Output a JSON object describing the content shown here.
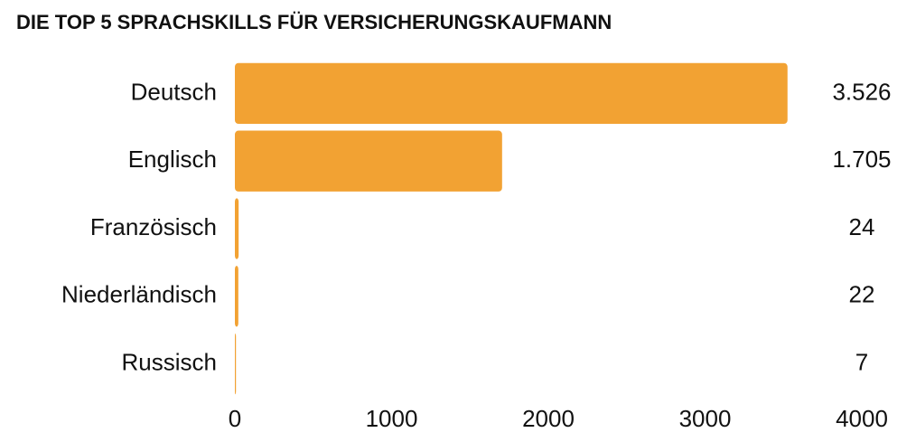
{
  "chart_data": {
    "type": "bar",
    "orientation": "horizontal",
    "title": "DIE TOP 5 SPRACHSKILLS FÜR VERSICHERUNGSKAUFMANN",
    "categories": [
      "Deutsch",
      "Englisch",
      "Französisch",
      "Niederländisch",
      "Russisch"
    ],
    "values": [
      3526,
      1705,
      24,
      22,
      7
    ],
    "value_labels": [
      "3.526",
      "1.705",
      "24",
      "22",
      "7"
    ],
    "color": "#f2a233",
    "xlim": [
      0,
      4000
    ],
    "xticks": [
      0,
      1000,
      2000,
      3000,
      4000
    ],
    "grid": false
  }
}
